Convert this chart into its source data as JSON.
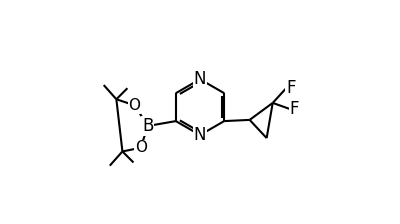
{
  "bg_color": "#ffffff",
  "line_color": "#000000",
  "lw": 1.5,
  "fs": 12,
  "figsize": [
    4.0,
    2.24
  ],
  "dpi": 100,
  "xlim": [
    0.0,
    1.0
  ],
  "ylim": [
    0.05,
    0.95
  ]
}
